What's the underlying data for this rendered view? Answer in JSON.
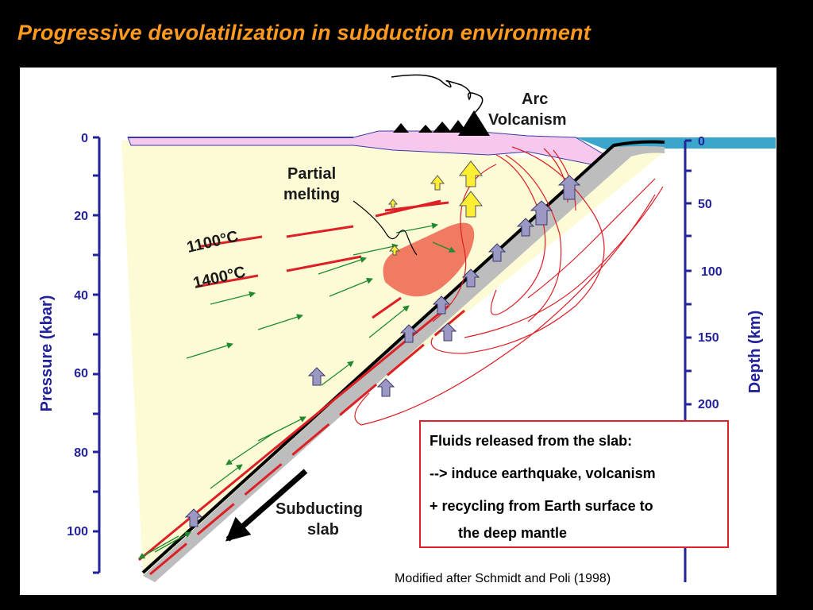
{
  "title": "Progressive devolatilization in subduction environment",
  "diagram": {
    "labels": {
      "arc": "Arc",
      "volcanism": "Volcanism",
      "partial": "Partial",
      "melting": "melting",
      "iso1100": "1100°C",
      "iso1400": "1400°C",
      "subducting": "Subducting",
      "slab": "slab"
    },
    "pressure_axis": {
      "title": "Pressure (kbar)",
      "ticks": [
        "0",
        "20",
        "40",
        "60",
        "80",
        "100"
      ]
    },
    "depth_axis": {
      "title": "Depth (km)",
      "ticks": [
        "0",
        "50",
        "100",
        "150",
        "200"
      ]
    },
    "colors": {
      "mantle_wedge": "#fdfbd6",
      "crust": "#f6c8ee",
      "ocean": "#3aa6cc",
      "melt_zone": "#f07a62",
      "isotherm": "#dd1f26",
      "fluid_arrow": "#1f8a2e",
      "magma_arrow": "#ffee33",
      "slab_fluid_arrow": "#9c98c4",
      "axis": "#22229a"
    }
  },
  "info_box": {
    "line1": "Fluids released from the slab:",
    "line2": "--> induce earthquake, volcanism",
    "line3": "+  recycling from Earth surface to",
    "line4": "the deep mantle"
  },
  "credit": "Modified after Schmidt and Poli (1998)"
}
